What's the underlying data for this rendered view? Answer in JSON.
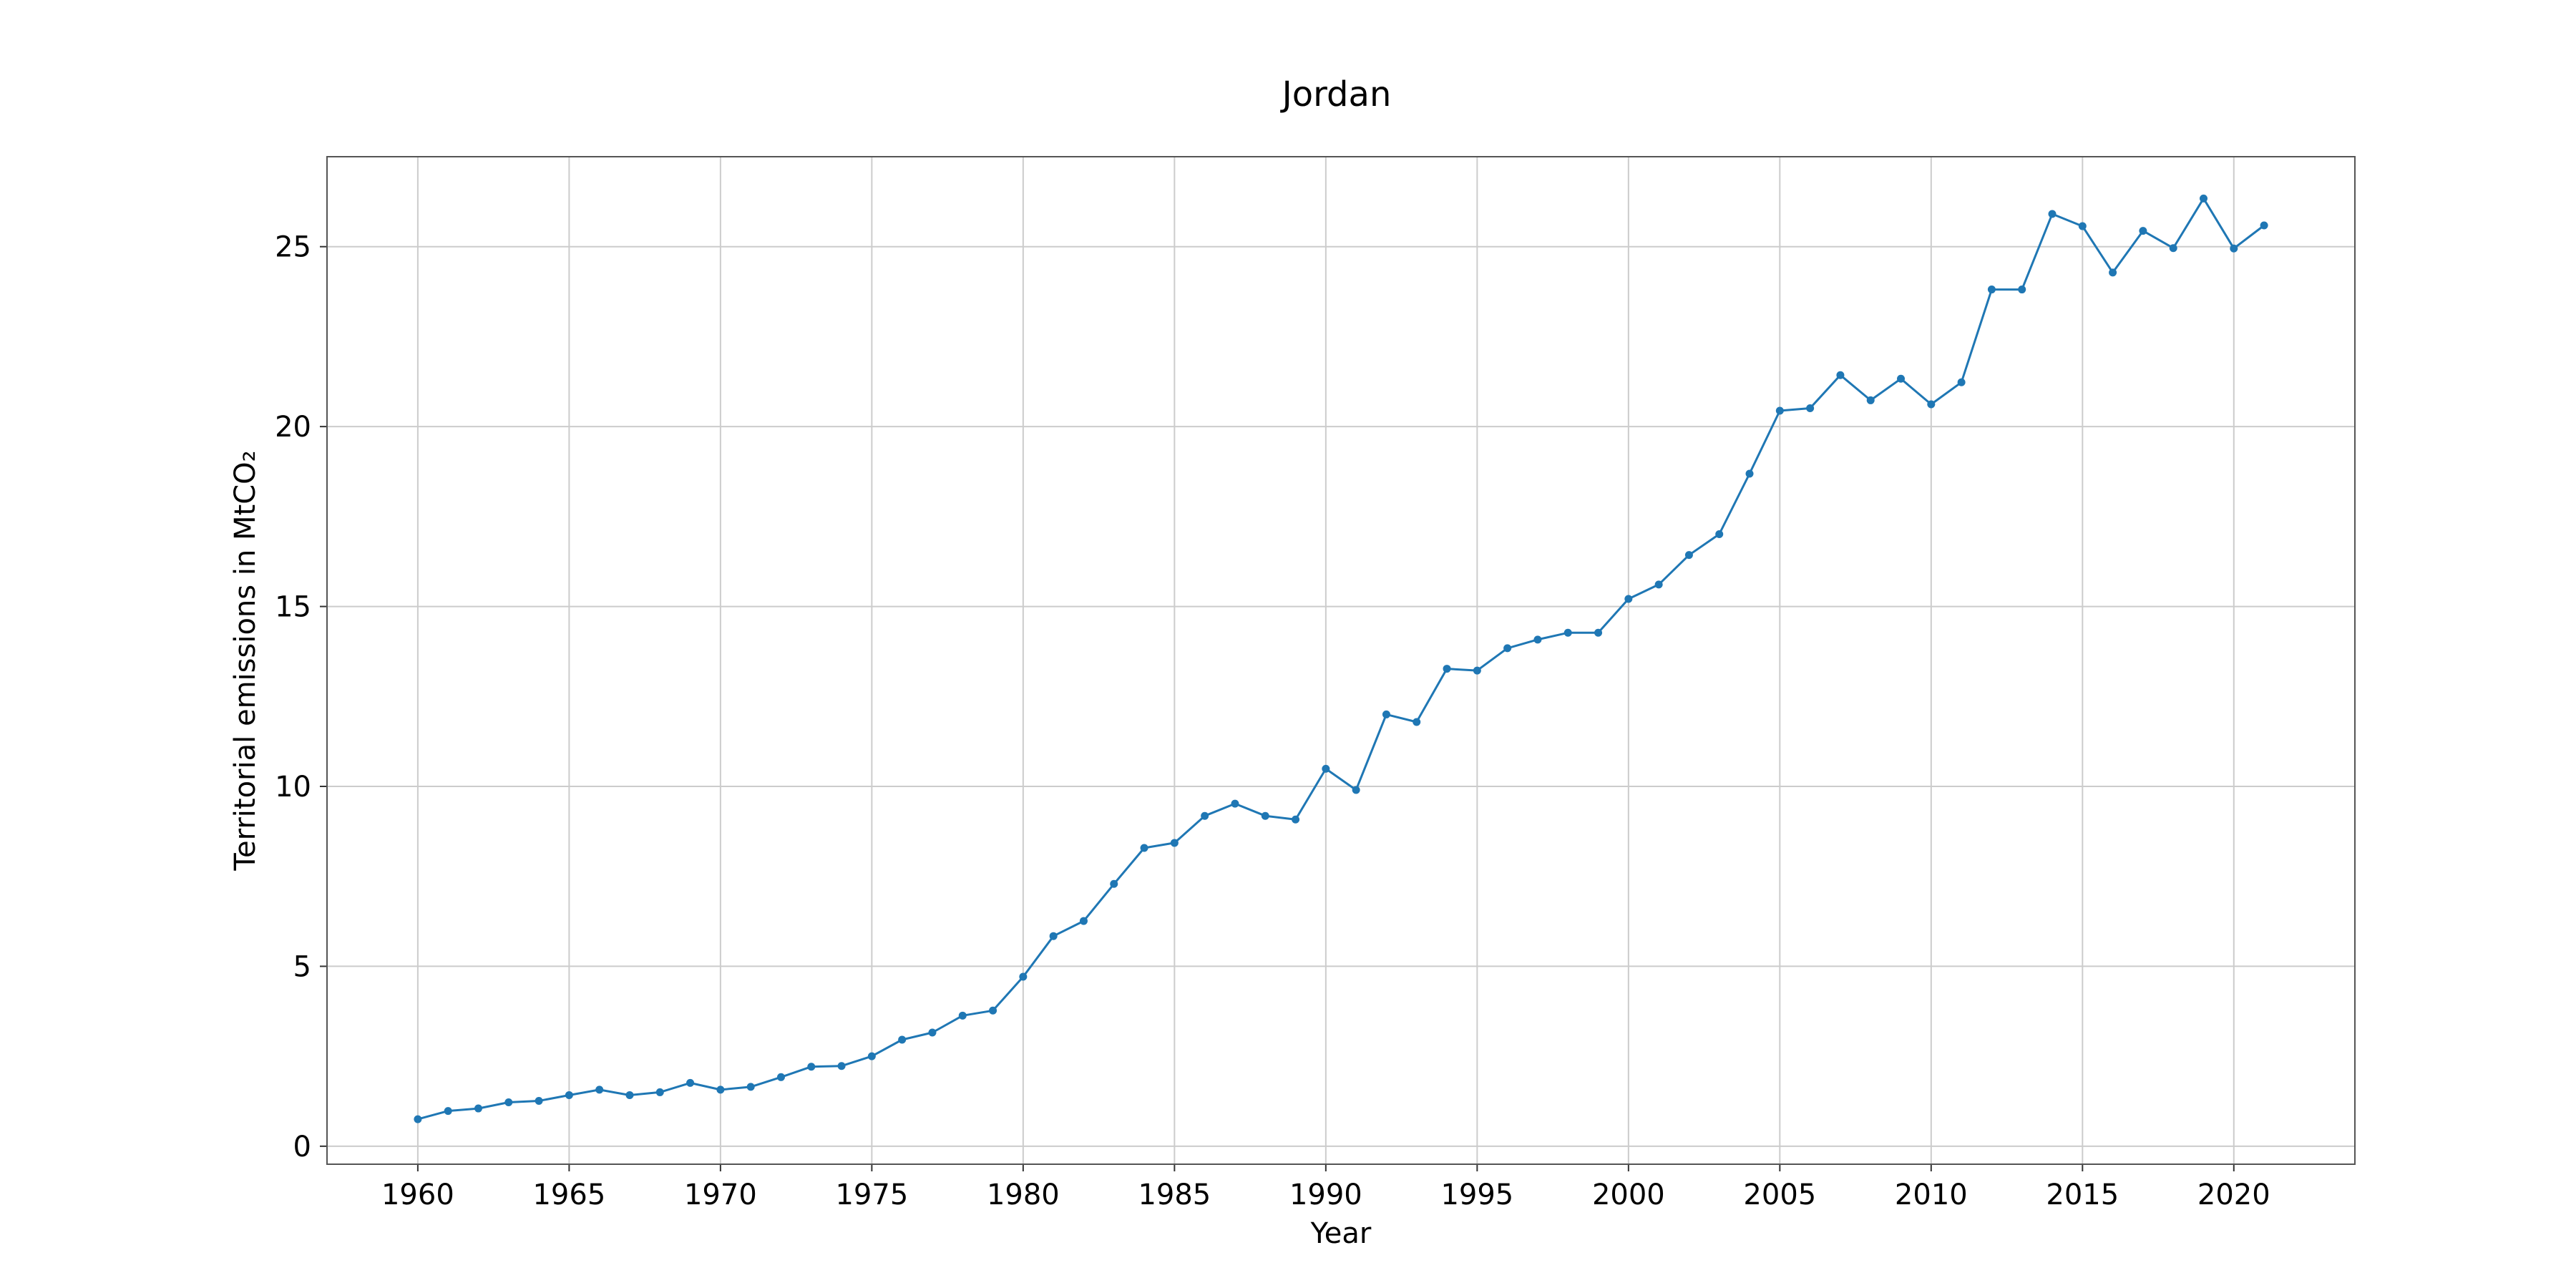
{
  "chart_data": {
    "type": "line",
    "title": "Jordan",
    "xlabel": "Year",
    "ylabel": "Territorial emissions in MtCO₂",
    "xlim": [
      1957,
      2024
    ],
    "ylim": [
      -0.5,
      27.5
    ],
    "xticks": [
      1960,
      1965,
      1970,
      1975,
      1980,
      1985,
      1990,
      1995,
      2000,
      2005,
      2010,
      2015,
      2020
    ],
    "yticks": [
      0,
      5,
      10,
      15,
      20,
      25
    ],
    "grid": true,
    "color": "#1f77b4",
    "x": [
      1960,
      1961,
      1962,
      1963,
      1964,
      1965,
      1966,
      1967,
      1968,
      1969,
      1970,
      1971,
      1972,
      1973,
      1974,
      1975,
      1976,
      1977,
      1978,
      1979,
      1980,
      1981,
      1982,
      1983,
      1984,
      1985,
      1986,
      1987,
      1988,
      1989,
      1990,
      1991,
      1992,
      1993,
      1994,
      1995,
      1996,
      1997,
      1998,
      1999,
      2000,
      2001,
      2002,
      2003,
      2004,
      2005,
      2006,
      2007,
      2008,
      2009,
      2010,
      2011,
      2012,
      2013,
      2014,
      2015,
      2016,
      2017,
      2018,
      2019,
      2020,
      2021
    ],
    "y": [
      0.75,
      0.98,
      1.05,
      1.22,
      1.26,
      1.42,
      1.57,
      1.42,
      1.5,
      1.76,
      1.57,
      1.65,
      1.92,
      2.21,
      2.23,
      2.5,
      2.96,
      3.16,
      3.63,
      3.77,
      4.71,
      5.84,
      6.26,
      7.29,
      8.29,
      8.43,
      9.18,
      9.52,
      9.18,
      9.08,
      10.49,
      9.9,
      12.0,
      11.79,
      13.27,
      13.22,
      13.84,
      14.08,
      14.27,
      14.27,
      15.21,
      15.61,
      16.43,
      17.01,
      18.69,
      20.44,
      20.51,
      21.43,
      20.73,
      21.33,
      20.62,
      21.23,
      23.81,
      23.81,
      25.91,
      25.57,
      24.28,
      25.44,
      24.96,
      26.34,
      24.95,
      25.59
    ]
  }
}
